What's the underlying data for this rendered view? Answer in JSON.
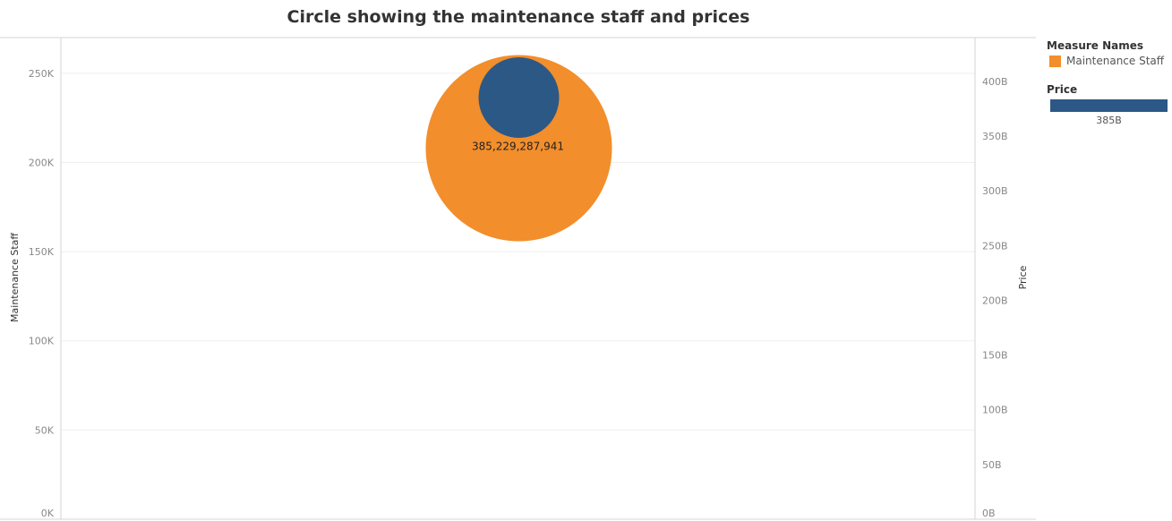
{
  "chart_data": {
    "type": "scatter",
    "title": "Circle showing the maintenance staff and prices",
    "y_left_label": "Maintenance Staff",
    "y_right_label": "Price",
    "y_left_ticks": [
      "0K",
      "50K",
      "100K",
      "150K",
      "200K",
      "250K"
    ],
    "y_left_ticks_values": [
      0,
      50000,
      100000,
      150000,
      200000,
      250000
    ],
    "y_left_range": [
      0,
      270000
    ],
    "y_right_ticks": [
      "0B",
      "50B",
      "100B",
      "150B",
      "200B",
      "250B",
      "300B",
      "350B",
      "400B"
    ],
    "y_right_ticks_values": [
      0,
      50,
      100,
      150,
      200,
      250,
      300,
      350,
      400
    ],
    "y_right_range": [
      0,
      440
    ],
    "grid": true,
    "legend_position": "right",
    "series": [
      {
        "name": "Maintenance Staff",
        "color": "#f28e2b",
        "y_axis": "left",
        "value": 208000
      },
      {
        "name": "Price",
        "color": "#2c5886",
        "y_axis": "right",
        "value": 385229287941,
        "value_scaled_B": 385.23
      }
    ],
    "data_label": "385,229,287,941"
  },
  "legend": {
    "color_title": "Measure Names",
    "color_items": [
      {
        "label": "Maintenance Staff",
        "color": "#f28e2b"
      }
    ],
    "size_title": "Price",
    "size_value_label": "385B",
    "size_color": "#2c5886"
  }
}
